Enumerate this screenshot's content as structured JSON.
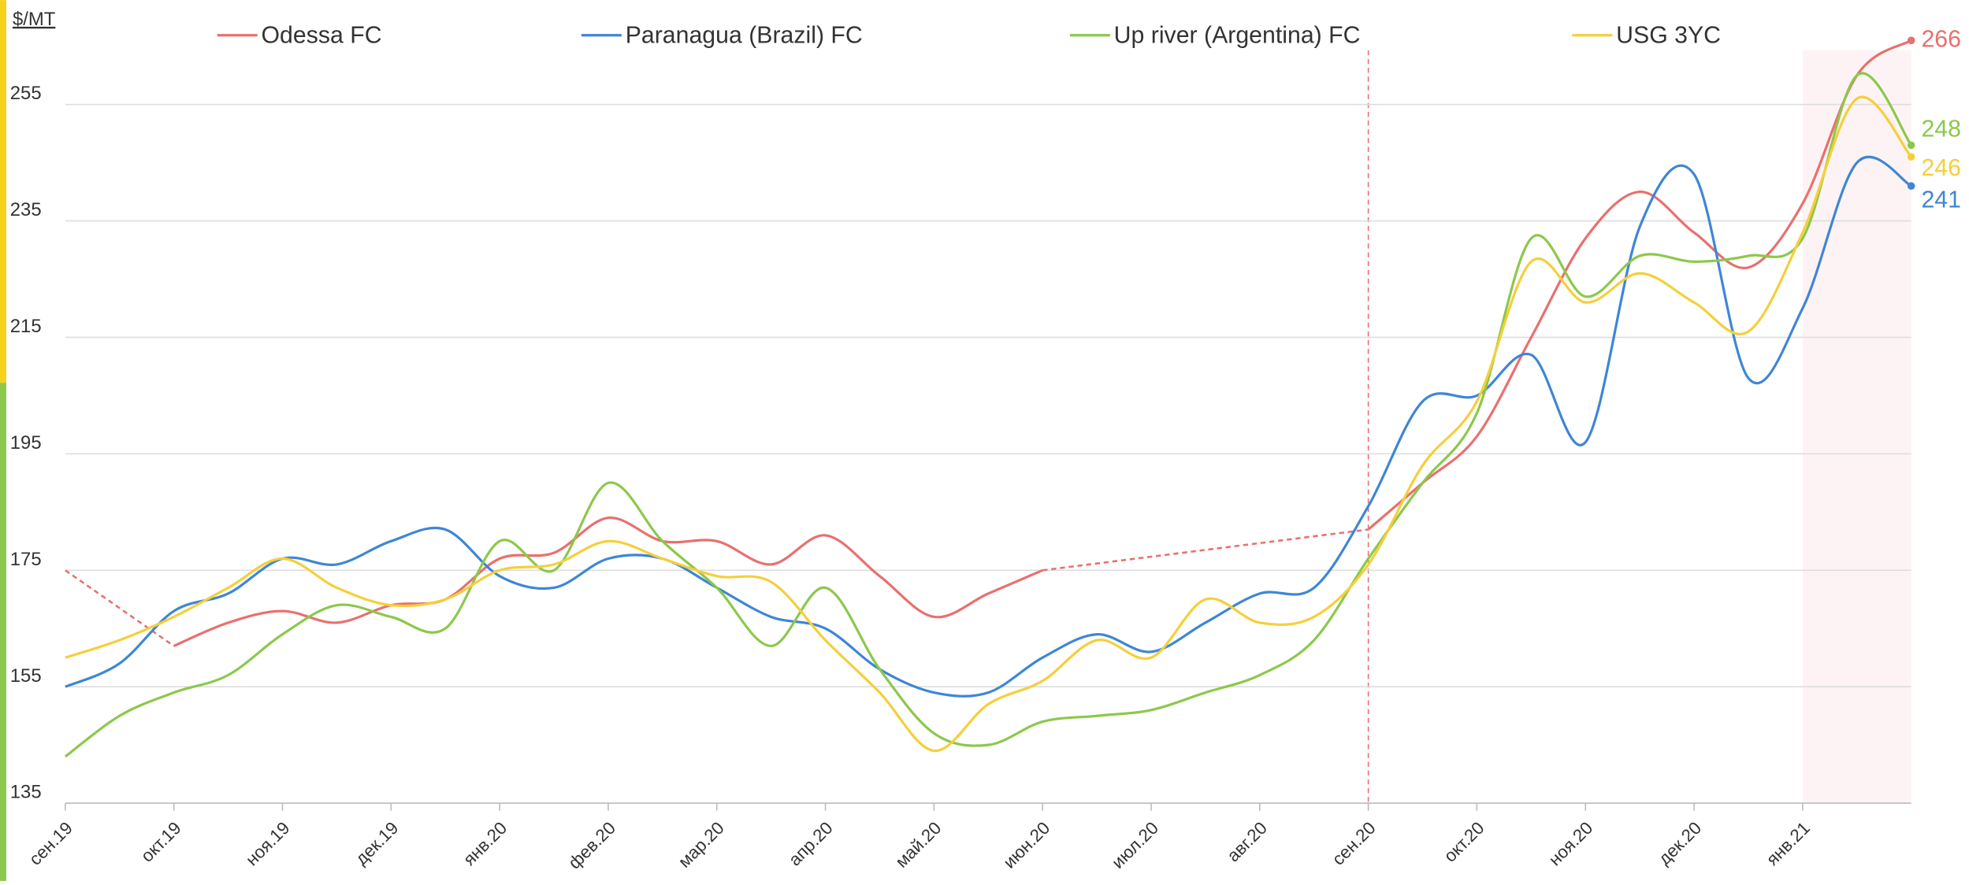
{
  "chart_data": {
    "type": "line",
    "y_label": "$/MT",
    "categories": [
      "сен.19",
      null,
      "окт.19",
      null,
      "ноя.19",
      null,
      "дек.19",
      null,
      "янв.20",
      null,
      "фев.20",
      null,
      "мар.20",
      null,
      "апр.20",
      null,
      "май.20",
      null,
      "июн.20",
      null,
      "июл.20",
      null,
      "авг.20",
      null,
      "сен.20",
      null,
      "окт.20",
      null,
      "ноя.20",
      null,
      "дек.20",
      null,
      "янв.21",
      null,
      null
    ],
    "series": [
      {
        "name": "Odessa FC",
        "color": "#e8706f",
        "values": [
          175,
          null,
          162,
          166,
          168,
          166,
          169,
          170,
          177,
          178,
          184,
          180,
          180,
          176,
          181,
          174,
          167,
          171,
          175,
          null,
          null,
          null,
          null,
          null,
          182,
          190,
          198,
          215,
          232,
          240,
          233,
          227,
          238,
          260,
          266
        ]
      },
      {
        "name": "Paranagua (Brazil) FC",
        "color": "#3e86d6",
        "values": [
          155,
          159,
          168,
          171,
          177,
          176,
          180,
          182,
          174,
          172,
          177,
          177,
          172,
          167,
          165,
          158,
          154,
          154,
          160,
          164,
          161,
          166,
          171,
          172,
          186,
          204,
          205,
          212,
          197,
          234,
          243,
          208,
          220,
          245,
          241
        ]
      },
      {
        "name": "Up river (Argentina) FC",
        "color": "#8cc84b",
        "values": [
          143,
          150,
          154,
          157,
          164,
          169,
          167,
          165,
          180,
          175,
          190,
          180,
          172,
          162,
          172,
          158,
          147,
          145,
          149,
          150,
          151,
          154,
          157,
          163,
          177,
          190,
          202,
          232,
          222,
          229,
          228,
          229,
          232,
          260,
          248
        ]
      },
      {
        "name": "USG 3YC",
        "color": "#f5cf3a",
        "values": [
          160,
          163,
          167,
          172,
          177,
          172,
          169,
          170,
          175,
          176,
          180,
          177,
          174,
          173,
          163,
          154,
          144,
          152,
          156,
          163,
          160,
          170,
          166,
          167,
          176,
          193,
          204,
          228,
          221,
          226,
          221,
          216,
          233,
          256,
          246
        ]
      }
    ],
    "ylim": [
      135,
      267
    ],
    "yticks": [
      135,
      155,
      175,
      195,
      215,
      235,
      255
    ],
    "grid": true,
    "dash_gaps": true
  }
}
